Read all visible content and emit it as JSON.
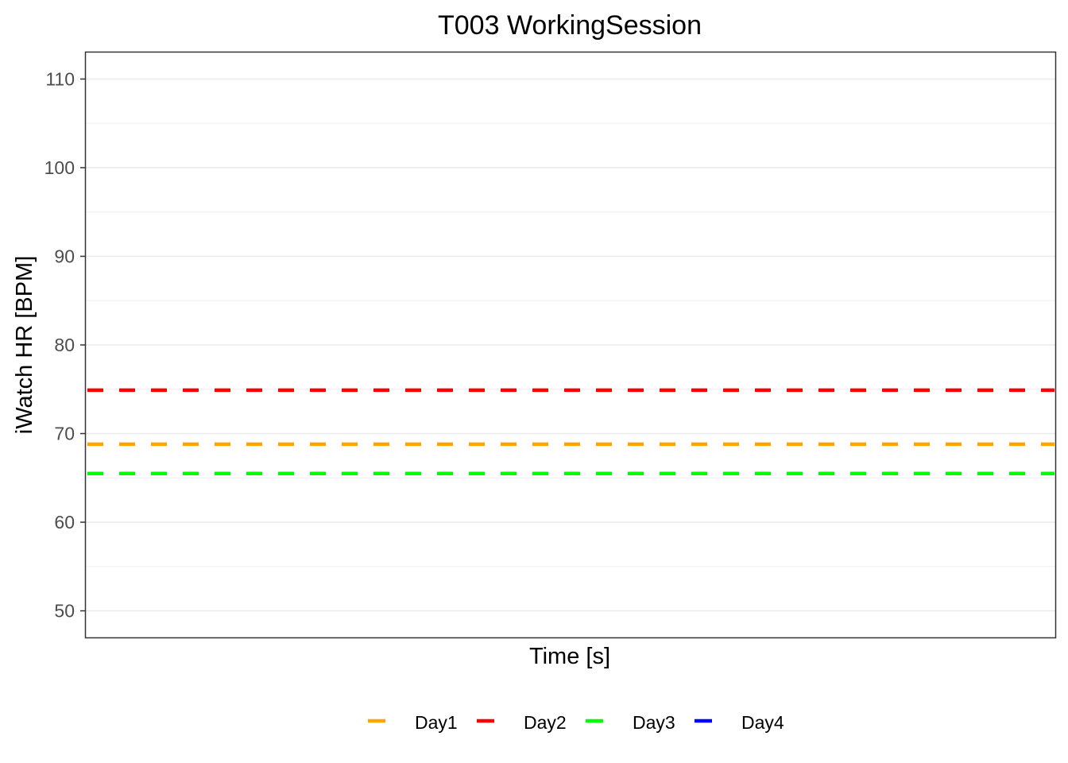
{
  "chart_data": {
    "type": "line",
    "title": "T003 WorkingSession",
    "xlabel": "Time [s]",
    "ylabel": "iWatch HR [BPM]",
    "ylim": [
      47,
      113
    ],
    "yticks": [
      50,
      60,
      70,
      80,
      90,
      100,
      110
    ],
    "yminor": [
      55,
      65,
      75,
      85,
      95,
      105
    ],
    "grid": true,
    "legend_position": "bottom",
    "series": [
      {
        "name": "Day1",
        "color": "#FFA500",
        "style": "dashed",
        "y": 68.8
      },
      {
        "name": "Day2",
        "color": "#FF0000",
        "style": "dashed",
        "y": 74.9
      },
      {
        "name": "Day3",
        "color": "#00FF00",
        "style": "dashed",
        "y": 65.5
      },
      {
        "name": "Day4",
        "color": "#0000FF",
        "style": "dashed",
        "y": null
      }
    ]
  }
}
